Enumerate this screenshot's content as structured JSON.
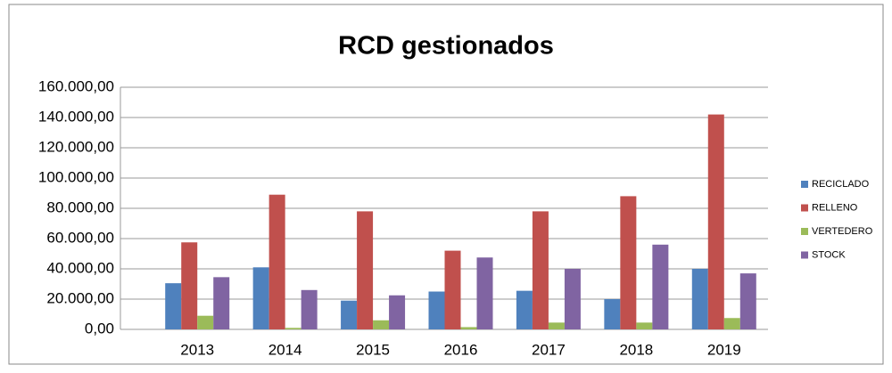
{
  "chart_data": {
    "type": "bar",
    "title": "RCD gestionados",
    "categories": [
      "2013",
      "2014",
      "2015",
      "2016",
      "2017",
      "2018",
      "2019"
    ],
    "series": [
      {
        "name": "RECICLADO",
        "color": "#4f81bd",
        "values": [
          30500,
          41000,
          19000,
          25000,
          25500,
          20000,
          40000
        ]
      },
      {
        "name": "RELLENO",
        "color": "#c0504d",
        "values": [
          57500,
          89000,
          78000,
          52000,
          78000,
          88000,
          142000
        ]
      },
      {
        "name": "VERTEDERO",
        "color": "#9bbb59",
        "values": [
          9000,
          1000,
          6000,
          1500,
          4500,
          4500,
          7500
        ]
      },
      {
        "name": "STOCK",
        "color": "#8064a2",
        "values": [
          34500,
          26000,
          22500,
          47500,
          40000,
          56000,
          37000
        ]
      }
    ],
    "ylim": [
      0,
      160000
    ],
    "yticks": [
      {
        "value": 0,
        "label": "0,00"
      },
      {
        "value": 20000,
        "label": "20.000,00"
      },
      {
        "value": 40000,
        "label": "40.000,00"
      },
      {
        "value": 60000,
        "label": "60.000,00"
      },
      {
        "value": 80000,
        "label": "80.000,00"
      },
      {
        "value": 100000,
        "label": "100.000,00"
      },
      {
        "value": 120000,
        "label": "120.000,00"
      },
      {
        "value": 140000,
        "label": "140.000,00"
      },
      {
        "value": 160000,
        "label": "160.000,00"
      }
    ],
    "grid": true,
    "legend": "right"
  }
}
